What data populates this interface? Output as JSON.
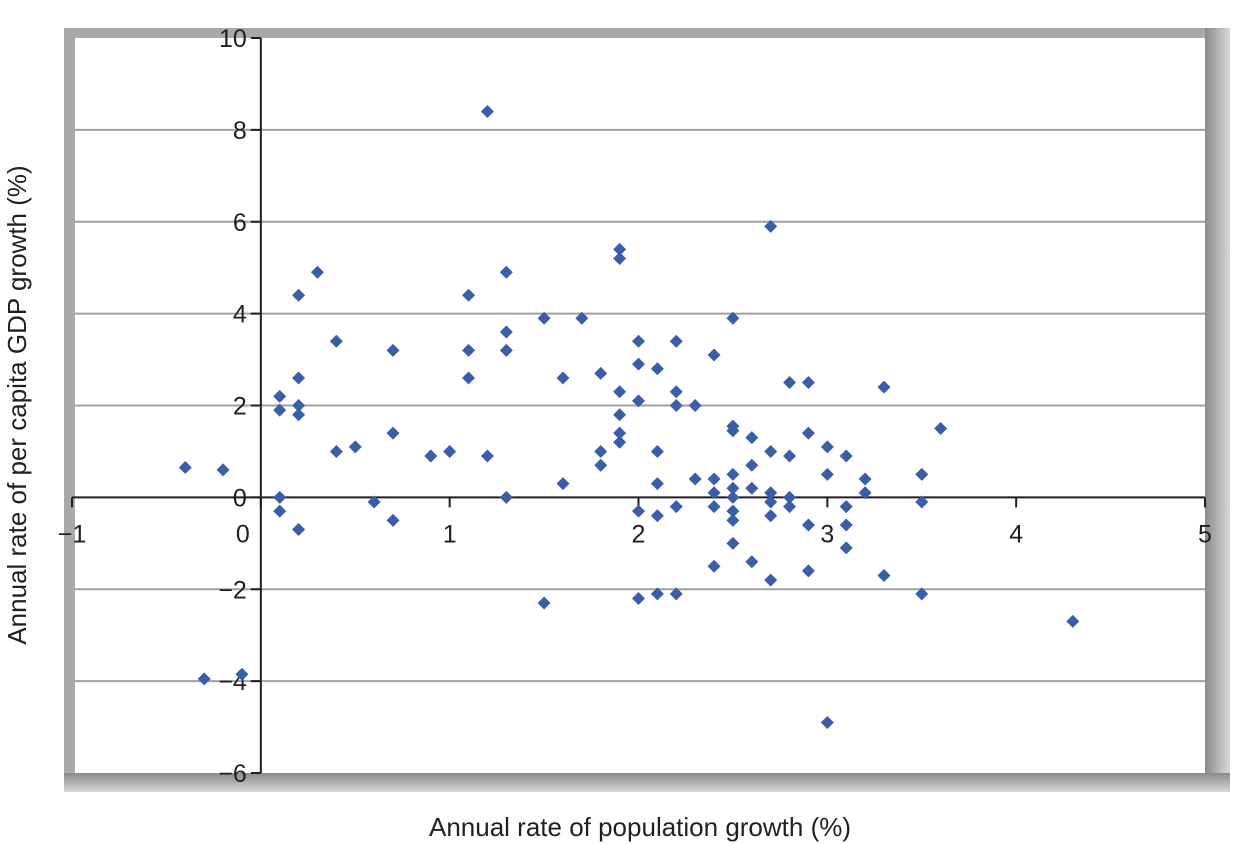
{
  "chart_data": {
    "type": "scatter",
    "title": "",
    "xlabel": "Annual rate of population growth (%)",
    "ylabel": "Annual rate of per capita GDP growth (%)",
    "xlim": [
      -1,
      5
    ],
    "ylim": [
      -6,
      10
    ],
    "xticks": [
      -1,
      0,
      1,
      2,
      3,
      4,
      5
    ],
    "yticks": [
      10,
      8,
      6,
      4,
      2,
      0,
      -2,
      -4,
      -6
    ],
    "xtick_labels": [
      "−1",
      "0",
      "1",
      "2",
      "3",
      "4",
      "5"
    ],
    "ytick_labels": [
      "10",
      "8",
      "6",
      "4",
      "2",
      "0",
      "−2",
      "−4",
      "−6"
    ],
    "grid": "horizontal",
    "marker": "diamond",
    "color": "#3a5ea8",
    "points": [
      [
        -0.4,
        0.65
      ],
      [
        -0.2,
        0.6
      ],
      [
        -0.3,
        -3.95
      ],
      [
        -0.1,
        -3.85
      ],
      [
        0.1,
        2.2
      ],
      [
        0.1,
        1.9
      ],
      [
        0.1,
        0.0
      ],
      [
        0.1,
        -0.3
      ],
      [
        0.2,
        4.4
      ],
      [
        0.2,
        2.6
      ],
      [
        0.2,
        2.0
      ],
      [
        0.2,
        1.8
      ],
      [
        0.2,
        -0.7
      ],
      [
        0.3,
        4.9
      ],
      [
        0.4,
        3.4
      ],
      [
        0.4,
        1.0
      ],
      [
        0.5,
        1.1
      ],
      [
        0.6,
        -0.1
      ],
      [
        0.7,
        3.2
      ],
      [
        0.7,
        1.4
      ],
      [
        0.7,
        -0.5
      ],
      [
        0.9,
        0.9
      ],
      [
        1.0,
        1.0
      ],
      [
        1.1,
        4.4
      ],
      [
        1.1,
        3.2
      ],
      [
        1.1,
        2.6
      ],
      [
        1.2,
        8.4
      ],
      [
        1.2,
        0.9
      ],
      [
        1.3,
        4.9
      ],
      [
        1.3,
        3.6
      ],
      [
        1.3,
        3.2
      ],
      [
        1.3,
        0.0
      ],
      [
        1.5,
        3.9
      ],
      [
        1.5,
        -2.3
      ],
      [
        1.6,
        2.6
      ],
      [
        1.6,
        0.3
      ],
      [
        1.7,
        3.9
      ],
      [
        1.8,
        2.7
      ],
      [
        1.8,
        1.0
      ],
      [
        1.8,
        0.7
      ],
      [
        1.9,
        5.4
      ],
      [
        1.9,
        5.2
      ],
      [
        1.9,
        2.3
      ],
      [
        1.9,
        1.8
      ],
      [
        1.9,
        1.4
      ],
      [
        1.9,
        1.2
      ],
      [
        2.0,
        3.4
      ],
      [
        2.0,
        2.9
      ],
      [
        2.0,
        2.1
      ],
      [
        2.0,
        -0.3
      ],
      [
        2.0,
        -2.2
      ],
      [
        2.1,
        2.8
      ],
      [
        2.1,
        1.0
      ],
      [
        2.1,
        0.3
      ],
      [
        2.1,
        -0.4
      ],
      [
        2.1,
        -2.1
      ],
      [
        2.2,
        3.4
      ],
      [
        2.2,
        2.3
      ],
      [
        2.2,
        2.0
      ],
      [
        2.2,
        -0.2
      ],
      [
        2.2,
        -2.1
      ],
      [
        2.3,
        2.0
      ],
      [
        2.3,
        0.4
      ],
      [
        2.4,
        3.1
      ],
      [
        2.4,
        0.4
      ],
      [
        2.4,
        0.1
      ],
      [
        2.4,
        -0.2
      ],
      [
        2.4,
        -1.5
      ],
      [
        2.5,
        3.9
      ],
      [
        2.5,
        1.55
      ],
      [
        2.5,
        1.45
      ],
      [
        2.5,
        0.5
      ],
      [
        2.5,
        0.2
      ],
      [
        2.5,
        0.0
      ],
      [
        2.5,
        -0.3
      ],
      [
        2.5,
        -0.5
      ],
      [
        2.5,
        -1.0
      ],
      [
        2.6,
        1.3
      ],
      [
        2.6,
        0.7
      ],
      [
        2.6,
        0.2
      ],
      [
        2.6,
        -1.4
      ],
      [
        2.7,
        5.9
      ],
      [
        2.7,
        1.0
      ],
      [
        2.7,
        0.1
      ],
      [
        2.7,
        -0.1
      ],
      [
        2.7,
        -0.4
      ],
      [
        2.7,
        -1.8
      ],
      [
        2.8,
        2.5
      ],
      [
        2.8,
        0.9
      ],
      [
        2.8,
        0.0
      ],
      [
        2.8,
        -0.2
      ],
      [
        2.9,
        2.5
      ],
      [
        2.9,
        1.4
      ],
      [
        2.9,
        -0.6
      ],
      [
        2.9,
        -1.6
      ],
      [
        3.0,
        1.1
      ],
      [
        3.0,
        0.5
      ],
      [
        3.0,
        -4.9
      ],
      [
        3.1,
        0.9
      ],
      [
        3.1,
        -0.2
      ],
      [
        3.1,
        -0.6
      ],
      [
        3.1,
        -1.1
      ],
      [
        3.2,
        0.4
      ],
      [
        3.2,
        0.1
      ],
      [
        3.3,
        2.4
      ],
      [
        3.3,
        -1.7
      ],
      [
        3.5,
        0.5
      ],
      [
        3.5,
        -0.1
      ],
      [
        3.5,
        -2.1
      ],
      [
        3.6,
        1.5
      ],
      [
        4.3,
        -2.7
      ]
    ]
  }
}
